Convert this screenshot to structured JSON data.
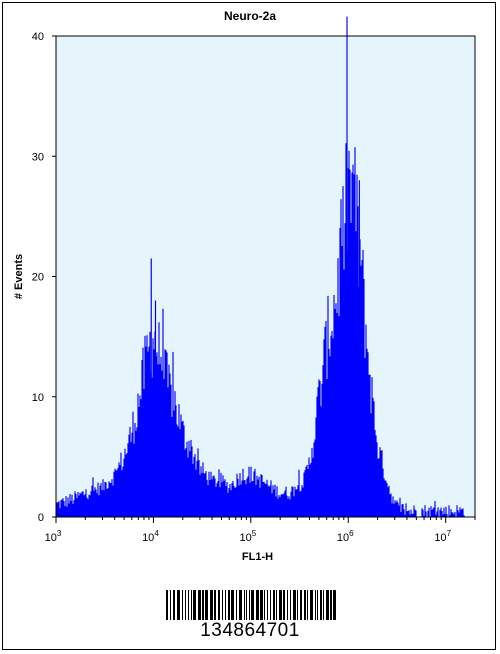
{
  "chart_data": {
    "type": "area",
    "title": "Neuro-2a",
    "xlabel": "FL1-H",
    "ylabel": "# Events",
    "x_scale": "log",
    "xlim": [
      1000,
      20000000
    ],
    "ylim": [
      0,
      40
    ],
    "y_ticks": [
      "0",
      "10",
      "20",
      "30",
      "40"
    ],
    "x_ticks": [
      {
        "base": "10",
        "exp": "3",
        "value": 1000
      },
      {
        "base": "10",
        "exp": "4",
        "value": 10000
      },
      {
        "base": "10",
        "exp": "5",
        "value": 100000
      },
      {
        "base": "10",
        "exp": "6",
        "value": 1000000
      },
      {
        "base": "10",
        "exp": "7",
        "value": 10000000
      }
    ],
    "grid": false,
    "series_color": "#0000ff",
    "background_color": "#e6f5fb",
    "x": [
      1000,
      1500,
      2000,
      3000,
      4000,
      5000,
      6000,
      7000,
      8000,
      9000,
      10000,
      11000,
      12500,
      14000,
      16000,
      18000,
      20000,
      25000,
      30000,
      40000,
      50000,
      60000,
      70000,
      80000,
      100000,
      130000,
      160000,
      200000,
      250000,
      300000,
      350000,
      400000,
      450000,
      500000,
      550000,
      600000,
      700000,
      800000,
      900000,
      1000000,
      1100000,
      1200000,
      1350000,
      1500000,
      1700000,
      2000000,
      2500000,
      3000000,
      4000000,
      5000000,
      7000000,
      10000000,
      15000000
    ],
    "values": [
      1,
      1.5,
      2,
      2.5,
      3.5,
      5,
      7,
      9.5,
      12,
      14,
      15,
      14,
      12.5,
      11,
      10,
      8.5,
      7,
      5.5,
      4,
      3,
      3,
      2.5,
      3,
      3.5,
      3.5,
      3,
      2.5,
      2,
      2,
      2.5,
      3,
      4.5,
      7,
      10,
      12,
      14.5,
      17,
      20,
      24,
      27,
      27,
      25,
      21,
      16,
      11,
      6,
      3,
      1,
      0.5,
      0.5,
      0.5,
      0.5,
      0.5
    ],
    "peak_spikes": [
      {
        "x": 9500,
        "y": 21.5
      },
      {
        "x": 10500,
        "y": 18
      },
      {
        "x": 1000000,
        "y": 29
      },
      {
        "x": 1150000,
        "y": 28.5
      },
      {
        "x": 1300000,
        "y": 28
      }
    ]
  },
  "barcode": {
    "number": "134864701"
  }
}
